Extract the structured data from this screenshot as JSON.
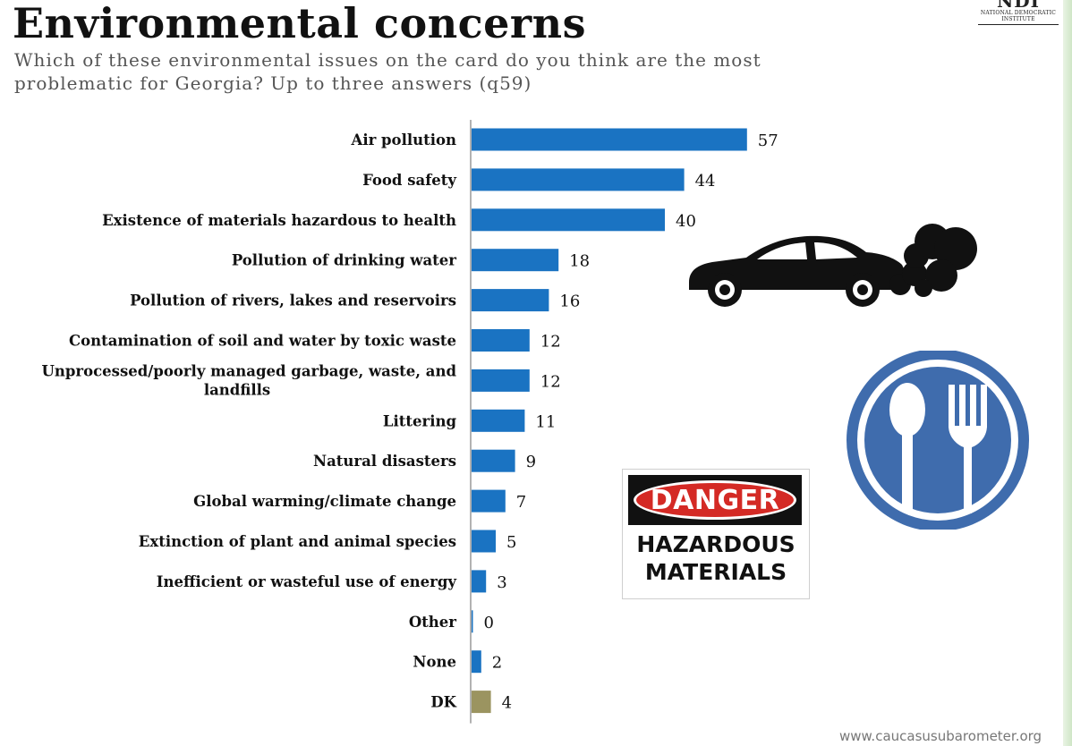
{
  "header": {
    "title": "Environmental concerns",
    "subtitle": "Which of these environmental issues on the card do you think are the most problematic for Georgia? Up to three answers (q59)"
  },
  "logo": {
    "mark": "NDI",
    "text": "National Democratic Institute"
  },
  "footer": {
    "url": "www.caucasusubarometer.org"
  },
  "sign": {
    "danger": "DANGER",
    "hazardous": "HAZARDOUS",
    "materials": "MATERIALS"
  },
  "colors": {
    "bar": "#1a73c2",
    "bar_dk": "#9b9460",
    "axis": "#7f7f7f",
    "danger_red": "#d42a25",
    "icon_blue": "#3f6cad"
  },
  "icons": [
    "car-exhaust-icon",
    "spoon-fork-icon",
    "danger-sign-icon"
  ],
  "chart_data": {
    "type": "bar",
    "orientation": "horizontal",
    "categories": [
      "Air pollution",
      "Food safety",
      "Existence of materials hazardous to health",
      "Pollution of drinking water",
      "Pollution of rivers, lakes and reservoirs",
      "Contamination of soil and water by toxic waste",
      "Unprocessed/poorly managed garbage, waste, and landfills",
      "Littering",
      "Natural disasters",
      "Global warming/climate change",
      "Extinction of plant and animal species",
      "Inefficient or wasteful use of energy",
      "Other",
      "None",
      "DK"
    ],
    "values": [
      57,
      44,
      40,
      18,
      16,
      12,
      12,
      11,
      9,
      7,
      5,
      3,
      0,
      2,
      4
    ],
    "title": "Environmental concerns",
    "xlabel": "",
    "ylabel": "",
    "xlim": [
      0,
      100
    ],
    "grid": false,
    "legend": "none"
  }
}
